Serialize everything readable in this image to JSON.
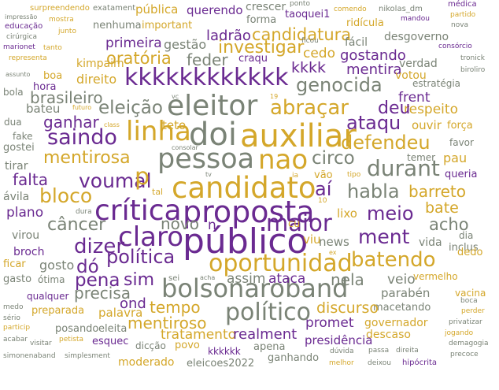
{
  "palette": {
    "purple": "#6a2a91",
    "gold": "#d4a72a",
    "gray": "#7a8376",
    "background": "#ffffff"
  },
  "words": [
    {
      "text": "surpreendendo",
      "color": "gold"
    },
    {
      "text": "exatament",
      "color": "gray"
    },
    {
      "text": "pública",
      "color": "gold"
    },
    {
      "text": "querendo",
      "color": "purple"
    },
    {
      "text": "crescer",
      "color": "gray"
    },
    {
      "text": "ponto",
      "color": "gray"
    },
    {
      "text": "comendo",
      "color": "gold"
    },
    {
      "text": "nikolas_dm",
      "color": "gray"
    },
    {
      "text": "médica",
      "color": "purple"
    },
    {
      "text": "impressão",
      "color": "gray"
    },
    {
      "text": "mostra",
      "color": "gold"
    },
    {
      "text": "mandou",
      "color": "purple"
    },
    {
      "text": "partido",
      "color": "gold"
    },
    {
      "text": "educação",
      "color": "purple"
    },
    {
      "text": "junto",
      "color": "gold"
    },
    {
      "text": "nenhuma",
      "color": "gray"
    },
    {
      "text": "important",
      "color": "gold"
    },
    {
      "text": "forma",
      "color": "gray"
    },
    {
      "text": "taoquei1",
      "color": "purple"
    },
    {
      "text": "ridícula",
      "color": "gold"
    },
    {
      "text": "nova",
      "color": "gray"
    },
    {
      "text": "cirúrgica",
      "color": "gray"
    },
    {
      "text": "primeira",
      "color": "purple"
    },
    {
      "text": "gestão",
      "color": "gray"
    },
    {
      "text": "ladrão",
      "color": "purple"
    },
    {
      "text": "candidatura",
      "color": "gold"
    },
    {
      "text": "ficou",
      "color": "gray"
    },
    {
      "text": "fácil",
      "color": "gray"
    },
    {
      "text": "desgoverno",
      "color": "gray"
    },
    {
      "text": "marionet",
      "color": "purple"
    },
    {
      "text": "tanto",
      "color": "gold"
    },
    {
      "text": "consórcio",
      "color": "purple"
    },
    {
      "text": "representa",
      "color": "gold"
    },
    {
      "text": "investigar",
      "color": "gold"
    },
    {
      "text": "feder",
      "color": "gray"
    },
    {
      "text": "oratória",
      "color": "gold"
    },
    {
      "text": "craqu",
      "color": "purple"
    },
    {
      "text": "cedo",
      "color": "gold"
    },
    {
      "text": "gostando",
      "color": "purple"
    },
    {
      "text": "verdad",
      "color": "gray"
    },
    {
      "text": "tronick",
      "color": "gray"
    },
    {
      "text": "kimpaim",
      "color": "gold"
    },
    {
      "text": "kkkk",
      "color": "purple"
    },
    {
      "text": "mentira",
      "color": "purple"
    },
    {
      "text": "biroliro",
      "color": "gray"
    },
    {
      "text": "assunto",
      "color": "gray"
    },
    {
      "text": "boa",
      "color": "gold"
    },
    {
      "text": "direito",
      "color": "gold"
    },
    {
      "text": "kkkkkkkkkkkk",
      "color": "purple"
    },
    {
      "text": "genocida",
      "color": "gray"
    },
    {
      "text": "votou",
      "color": "gold"
    },
    {
      "text": "hora",
      "color": "purple"
    },
    {
      "text": "estratégia",
      "color": "gray"
    },
    {
      "text": "bola",
      "color": "gray"
    },
    {
      "text": "brasileiro",
      "color": "gray"
    },
    {
      "text": "frent",
      "color": "purple"
    },
    {
      "text": "vc",
      "color": "gray"
    },
    {
      "text": "19",
      "color": "gold"
    },
    {
      "text": "respeito",
      "color": "gold"
    },
    {
      "text": "bateu",
      "color": "gray"
    },
    {
      "text": "futuro",
      "color": "gold"
    },
    {
      "text": "eleitor",
      "color": "gray"
    },
    {
      "text": "abraçar",
      "color": "gold"
    },
    {
      "text": "deu",
      "color": "purple"
    },
    {
      "text": "eleição",
      "color": "gray"
    },
    {
      "text": "ganhar",
      "color": "purple"
    },
    {
      "text": "dua",
      "color": "gray"
    },
    {
      "text": "class",
      "color": "gold"
    },
    {
      "text": "ataqu",
      "color": "purple"
    },
    {
      "text": "ouvir",
      "color": "gold"
    },
    {
      "text": "força",
      "color": "gold"
    },
    {
      "text": "teto",
      "color": "gold"
    },
    {
      "text": "linha",
      "color": "gold"
    },
    {
      "text": "doi",
      "color": "gray"
    },
    {
      "text": "auxiliar",
      "color": "gold"
    },
    {
      "text": "saindo",
      "color": "purple"
    },
    {
      "text": "fake",
      "color": "gray"
    },
    {
      "text": "gostei",
      "color": "gray"
    },
    {
      "text": "consolar",
      "color": "gray"
    },
    {
      "text": "defendeu",
      "color": "gold"
    },
    {
      "text": "favor",
      "color": "gray"
    },
    {
      "text": "mentirosa",
      "color": "gold"
    },
    {
      "text": "pessoa",
      "color": "gray"
    },
    {
      "text": "nao",
      "color": "gold"
    },
    {
      "text": "circo",
      "color": "gray"
    },
    {
      "text": "temer",
      "color": "gray"
    },
    {
      "text": "tirar",
      "color": "gray"
    },
    {
      "text": "durant",
      "color": "gray"
    },
    {
      "text": "pau",
      "color": "gold"
    },
    {
      "text": "falta",
      "color": "purple"
    },
    {
      "text": "voumal",
      "color": "purple"
    },
    {
      "text": "p",
      "color": "gold"
    },
    {
      "text": "tv",
      "color": "gray"
    },
    {
      "text": "ia",
      "color": "gold"
    },
    {
      "text": "vão",
      "color": "gold"
    },
    {
      "text": "tipo",
      "color": "gold"
    },
    {
      "text": "queria",
      "color": "purple"
    },
    {
      "text": "candidato",
      "color": "gold"
    },
    {
      "text": "aí",
      "color": "purple"
    },
    {
      "text": "bloco",
      "color": "gold"
    },
    {
      "text": "tal",
      "color": "gold"
    },
    {
      "text": "habla",
      "color": "gray"
    },
    {
      "text": "barreto",
      "color": "gold"
    },
    {
      "text": "ávila",
      "color": "gray"
    },
    {
      "text": "10",
      "color": "gold"
    },
    {
      "text": "bate",
      "color": "gold"
    },
    {
      "text": "crítica",
      "color": "purple"
    },
    {
      "text": "proposta",
      "color": "purple"
    },
    {
      "text": "plano",
      "color": "purple"
    },
    {
      "text": "dura",
      "color": "gray"
    },
    {
      "text": "meio",
      "color": "purple"
    },
    {
      "text": "câncer",
      "color": "gray"
    },
    {
      "text": "novo",
      "color": "gray"
    },
    {
      "text": "n",
      "color": "purple"
    },
    {
      "text": "maior",
      "color": "purple"
    },
    {
      "text": "cu",
      "color": "gold"
    },
    {
      "text": "lixo",
      "color": "gold"
    },
    {
      "text": "acho",
      "color": "gray"
    },
    {
      "text": "virou",
      "color": "gray"
    },
    {
      "text": "claro",
      "color": "purple"
    },
    {
      "text": "público",
      "color": "purple"
    },
    {
      "text": "ment",
      "color": "purple"
    },
    {
      "text": "dia",
      "color": "gray"
    },
    {
      "text": "viu",
      "color": "gold"
    },
    {
      "text": "news",
      "color": "gray"
    },
    {
      "text": "dizer",
      "color": "purple"
    },
    {
      "text": "vida",
      "color": "gray"
    },
    {
      "text": "broch",
      "color": "purple"
    },
    {
      "text": "inclus",
      "color": "gray"
    },
    {
      "text": "ficar",
      "color": "gold"
    },
    {
      "text": "gosto",
      "color": "gray"
    },
    {
      "text": "política",
      "color": "purple"
    },
    {
      "text": "oportunidad",
      "color": "gold"
    },
    {
      "text": "batendo",
      "color": "gold"
    },
    {
      "text": "ex",
      "color": "gold"
    },
    {
      "text": "dedo",
      "color": "gold"
    },
    {
      "text": "dó",
      "color": "purple"
    },
    {
      "text": "gasto",
      "color": "gray"
    },
    {
      "text": "ótima",
      "color": "gray"
    },
    {
      "text": "pena",
      "color": "purple"
    },
    {
      "text": "sim",
      "color": "purple"
    },
    {
      "text": "sei",
      "color": "gray"
    },
    {
      "text": "acha",
      "color": "gray"
    },
    {
      "text": "bolsonaroband",
      "color": "gray"
    },
    {
      "text": "assim",
      "color": "gray"
    },
    {
      "text": "ataca",
      "color": "purple"
    },
    {
      "text": "nela",
      "color": "gray"
    },
    {
      "text": "veio",
      "color": "gray"
    },
    {
      "text": "vermelho",
      "color": "gold"
    },
    {
      "text": "qualquer",
      "color": "purple"
    },
    {
      "text": "precisa",
      "color": "gray"
    },
    {
      "text": "parabén",
      "color": "gray"
    },
    {
      "text": "vacina",
      "color": "gold"
    },
    {
      "text": "medo",
      "color": "gray"
    },
    {
      "text": "ond",
      "color": "purple"
    },
    {
      "text": "macetando",
      "color": "gray"
    },
    {
      "text": "boca",
      "color": "gray"
    },
    {
      "text": "sério",
      "color": "gray"
    },
    {
      "text": "tempo",
      "color": "gold"
    },
    {
      "text": "discurso",
      "color": "gold"
    },
    {
      "text": "perder",
      "color": "gold"
    },
    {
      "text": "preparada",
      "color": "gold"
    },
    {
      "text": "palavra",
      "color": "gold"
    },
    {
      "text": "político",
      "color": "gray"
    },
    {
      "text": "promet",
      "color": "purple"
    },
    {
      "text": "governador",
      "color": "gold"
    },
    {
      "text": "privatizar",
      "color": "gray"
    },
    {
      "text": "particip",
      "color": "gold"
    },
    {
      "text": "posando",
      "color": "gray"
    },
    {
      "text": "eleita",
      "color": "gray"
    },
    {
      "text": "mentiroso",
      "color": "gold"
    },
    {
      "text": "descaso",
      "color": "gold"
    },
    {
      "text": "jogando",
      "color": "gold"
    },
    {
      "text": "acabar",
      "color": "gray"
    },
    {
      "text": "visitar",
      "color": "gray"
    },
    {
      "text": "petista",
      "color": "gold"
    },
    {
      "text": "esquec",
      "color": "purple"
    },
    {
      "text": "tratamento",
      "color": "gold"
    },
    {
      "text": "realment",
      "color": "purple"
    },
    {
      "text": "demagogia",
      "color": "gray"
    },
    {
      "text": "dicção",
      "color": "gray"
    },
    {
      "text": "povo",
      "color": "gold"
    },
    {
      "text": "apena",
      "color": "gray"
    },
    {
      "text": "presidência",
      "color": "purple"
    },
    {
      "text": "passa",
      "color": "gray"
    },
    {
      "text": "direita",
      "color": "gray"
    },
    {
      "text": "simonenaband",
      "color": "gray"
    },
    {
      "text": "simplesment",
      "color": "gray"
    },
    {
      "text": "kkkkkk",
      "color": "purple"
    },
    {
      "text": "dúvida",
      "color": "gray"
    },
    {
      "text": "precoce",
      "color": "gray"
    },
    {
      "text": "moderado",
      "color": "gold"
    },
    {
      "text": "eleicoes2022",
      "color": "gray"
    },
    {
      "text": "ganhando",
      "color": "gray"
    },
    {
      "text": "melhor",
      "color": "gold"
    },
    {
      "text": "deixou",
      "color": "gray"
    },
    {
      "text": "hipócrita",
      "color": "purple"
    }
  ]
}
